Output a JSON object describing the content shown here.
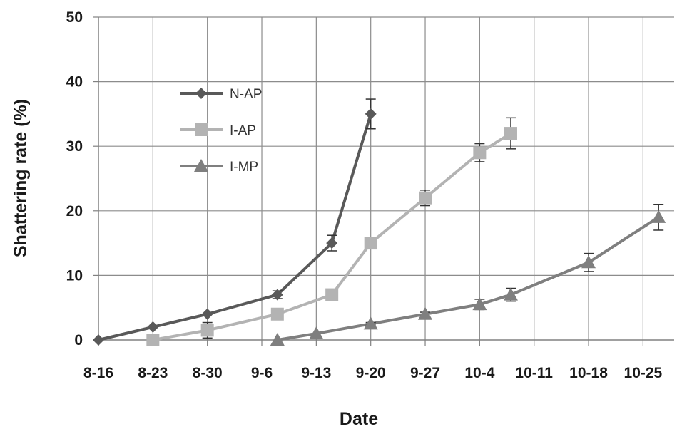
{
  "chart_data": {
    "type": "line",
    "title": "",
    "xlabel": "Date",
    "ylabel": "Shattering rate (%)",
    "ylim": [
      0,
      50
    ],
    "yticks": [
      0,
      10,
      20,
      30,
      40,
      50
    ],
    "xlim": [
      "2000-08-16",
      "2000-10-29"
    ],
    "xticks": [
      {
        "date": "2000-08-16",
        "label": "8-16"
      },
      {
        "date": "2000-08-23",
        "label": "8-23"
      },
      {
        "date": "2000-08-30",
        "label": "8-30"
      },
      {
        "date": "2000-09-06",
        "label": "9-6"
      },
      {
        "date": "2000-09-13",
        "label": "9-13"
      },
      {
        "date": "2000-09-20",
        "label": "9-20"
      },
      {
        "date": "2000-09-27",
        "label": "9-27"
      },
      {
        "date": "2000-10-04",
        "label": "10-4"
      },
      {
        "date": "2000-10-11",
        "label": "10-11"
      },
      {
        "date": "2000-10-18",
        "label": "10-18"
      },
      {
        "date": "2000-10-25",
        "label": "10-25"
      }
    ],
    "grid": {
      "horizontal": true,
      "vertical": true
    },
    "legend": {
      "position": "upper-left"
    },
    "series": [
      {
        "name": "N-AP",
        "color": "#595959",
        "marker": "diamond",
        "points": [
          {
            "x": "2000-08-16",
            "y": 0,
            "err": 0
          },
          {
            "x": "2000-08-23",
            "y": 2,
            "err": 0
          },
          {
            "x": "2000-08-30",
            "y": 4,
            "err": 0
          },
          {
            "x": "2000-09-08",
            "y": 7,
            "err": 0.6
          },
          {
            "x": "2000-09-15",
            "y": 15,
            "err": 1.2
          },
          {
            "x": "2000-09-20",
            "y": 35,
            "err": 2.3
          }
        ]
      },
      {
        "name": "I-AP",
        "color": "#b3b3b3",
        "marker": "square",
        "points": [
          {
            "x": "2000-08-23",
            "y": 0,
            "err": 0
          },
          {
            "x": "2000-08-30",
            "y": 1.5,
            "err": 1.2
          },
          {
            "x": "2000-09-08",
            "y": 4,
            "err": 0.8
          },
          {
            "x": "2000-09-15",
            "y": 7,
            "err": 0.8
          },
          {
            "x": "2000-09-20",
            "y": 15,
            "err": 0
          },
          {
            "x": "2000-09-27",
            "y": 22,
            "err": 1.2
          },
          {
            "x": "2000-10-04",
            "y": 29,
            "err": 1.4
          },
          {
            "x": "2000-10-08",
            "y": 32,
            "err": 2.4
          }
        ]
      },
      {
        "name": "I-MP",
        "color": "#7f7f7f",
        "marker": "triangle",
        "points": [
          {
            "x": "2000-09-08",
            "y": 0,
            "err": 0
          },
          {
            "x": "2000-09-13",
            "y": 1,
            "err": 0
          },
          {
            "x": "2000-09-20",
            "y": 2.5,
            "err": 0.2
          },
          {
            "x": "2000-09-27",
            "y": 4,
            "err": 0.3
          },
          {
            "x": "2000-10-04",
            "y": 5.5,
            "err": 0.8
          },
          {
            "x": "2000-10-08",
            "y": 7,
            "err": 1.0
          },
          {
            "x": "2000-10-18",
            "y": 12,
            "err": 1.4
          },
          {
            "x": "2000-10-27",
            "y": 19,
            "err": 2.0
          }
        ]
      }
    ]
  }
}
